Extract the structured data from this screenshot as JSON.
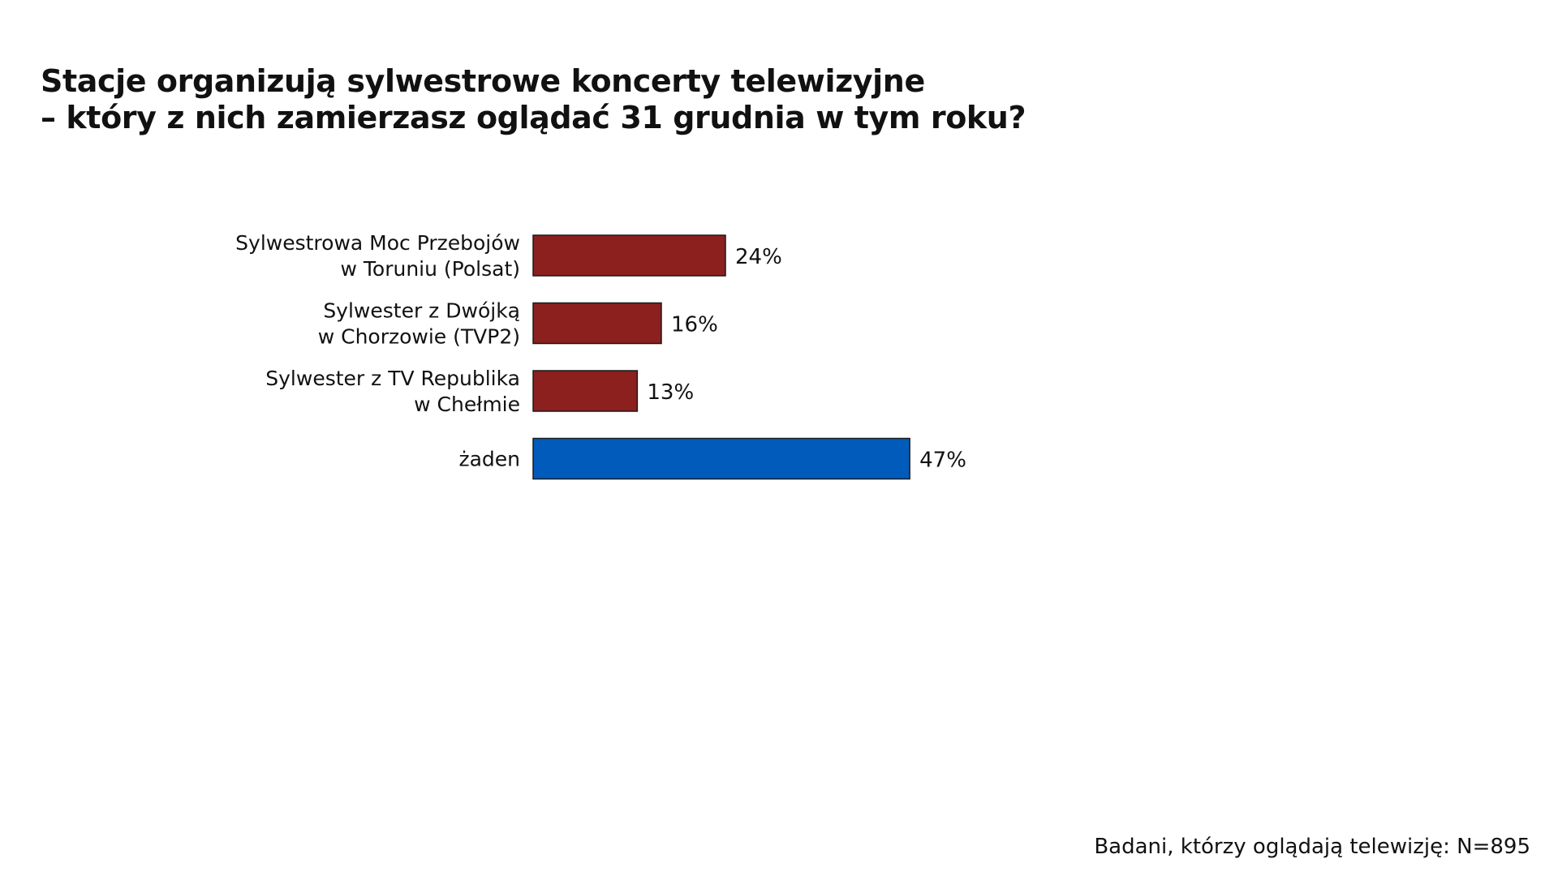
{
  "chart_data": {
    "type": "bar",
    "orientation": "horizontal",
    "title_lines": [
      "Stacje organizują sylwestrowe koncerty telewizyjne",
      "– który z nich zamierzasz oglądać 31 grudnia w tym roku?"
    ],
    "categories": [
      [
        "Sylwestrowa Moc Przebojów",
        "w Toruniu (Polsat)"
      ],
      [
        "Sylwester z Dwójką",
        "w Chorzowie (TVP2)"
      ],
      [
        "Sylwester z TV Republika",
        "w Chełmie"
      ],
      [
        "żaden"
      ]
    ],
    "values": [
      24,
      16,
      13,
      47
    ],
    "value_labels": [
      "24%",
      "16%",
      "13%",
      "47%"
    ],
    "unit": "%",
    "bar_colors": [
      "#8B201E",
      "#8B201E",
      "#8B201E",
      "#005BBB"
    ],
    "xlim": [
      0,
      100
    ],
    "grid": false,
    "legend": "none"
  },
  "footnote": "Badani, którzy oglądają telewizję: N=895"
}
